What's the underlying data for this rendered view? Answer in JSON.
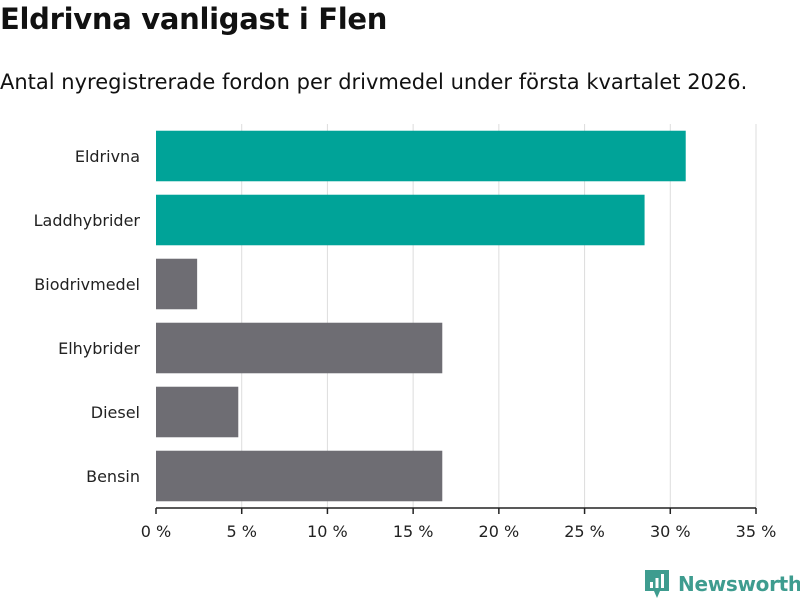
{
  "title": "Eldrivna vanligast i Flen",
  "subtitle": "Antal nyregistrerade fordon per drivmedel under första kvartalet 2026.",
  "brand": {
    "name": "Newsworthy",
    "color": "#3e9c8f"
  },
  "colors": {
    "highlight": "#00a398",
    "default": "#6e6d73",
    "grid": "#dddddd",
    "axis": "#222222"
  },
  "chart_data": {
    "type": "bar",
    "orientation": "horizontal",
    "categories": [
      "Eldrivna",
      "Laddhybrider",
      "Biodrivmedel",
      "Elhybrider",
      "Diesel",
      "Bensin"
    ],
    "values": [
      30.9,
      28.5,
      2.4,
      16.7,
      4.8,
      16.7
    ],
    "highlighted": [
      true,
      true,
      false,
      false,
      false,
      false
    ],
    "xlim": [
      0,
      35
    ],
    "xticks": [
      0,
      5,
      10,
      15,
      20,
      25,
      30,
      35
    ],
    "xtick_labels": [
      "0 %",
      "5 %",
      "10 %",
      "15 %",
      "20 %",
      "25 %",
      "30 %",
      "35 %"
    ],
    "grid": true,
    "legend": "none",
    "xlabel": "",
    "ylabel": ""
  }
}
